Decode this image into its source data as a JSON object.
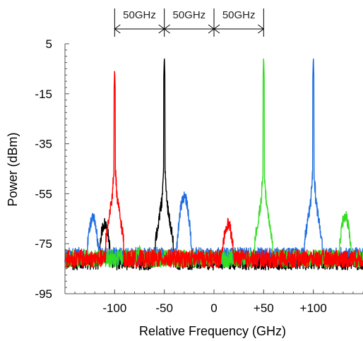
{
  "chart_data": {
    "type": "line",
    "title": "",
    "xlabel": "Relative Frequency (GHz)",
    "ylabel": "Power (dBm)",
    "xlim": [
      -150,
      150
    ],
    "ylim": [
      -95,
      5
    ],
    "x_ticks": [
      {
        "value": -100,
        "label": "-100"
      },
      {
        "value": -50,
        "label": "-50"
      },
      {
        "value": 0,
        "label": "0"
      },
      {
        "value": 50,
        "label": "+50"
      },
      {
        "value": 100,
        "label": "+100"
      }
    ],
    "y_ticks": [
      {
        "value": 5,
        "label": "5"
      },
      {
        "value": -15,
        "label": "-15"
      },
      {
        "value": -35,
        "label": "-35"
      },
      {
        "value": -55,
        "label": "-55"
      },
      {
        "value": -75,
        "label": "-75"
      },
      {
        "value": -95,
        "label": "-95"
      }
    ],
    "grid": false,
    "spacing_annotations": [
      {
        "from": -100,
        "to": -50,
        "label": "50GHz"
      },
      {
        "from": -50,
        "to": 0,
        "label": "50GHz"
      },
      {
        "from": 0,
        "to": 50,
        "label": "50GHz"
      }
    ],
    "series": [
      {
        "color": "#000000",
        "noise_floor": -82,
        "peaks": [
          {
            "x": -50,
            "y": 0,
            "shoulder": -58
          },
          {
            "x": -110,
            "y": -67
          }
        ]
      },
      {
        "color": "#1f6fe0",
        "noise_floor": -80,
        "peaks": [
          {
            "x": 100,
            "y": 0,
            "shoulder": -58
          },
          {
            "x": -30,
            "y": -56
          },
          {
            "x": -122,
            "y": -65
          }
        ]
      },
      {
        "color": "#33dd22",
        "noise_floor": -81,
        "peaks": [
          {
            "x": 50,
            "y": 0,
            "shoulder": -58
          },
          {
            "x": 132,
            "y": -64
          },
          {
            "x": -75,
            "y": -78
          }
        ]
      },
      {
        "color": "#ff0000",
        "noise_floor": -81,
        "peaks": [
          {
            "x": -100,
            "y": -5,
            "shoulder": -57
          },
          {
            "x": 14,
            "y": -67
          }
        ]
      }
    ]
  }
}
